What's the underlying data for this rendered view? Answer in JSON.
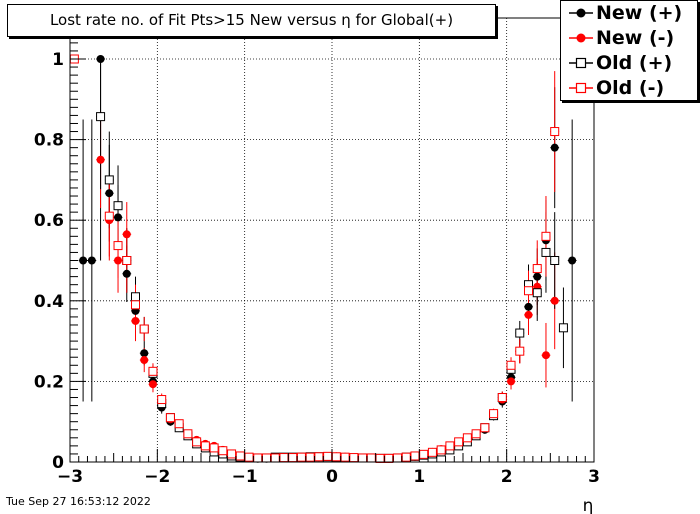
{
  "title": "Lost rate no. of Fit Pts>15 New versus η for Global(+)",
  "timestamp": "Tue Sep 27 16:53:12 2022",
  "chart_data": {
    "type": "scatter",
    "xlabel": "η",
    "ylabel": "",
    "xlim": [
      -3,
      3
    ],
    "ylim": [
      0,
      1.0
    ],
    "x_ticks": [
      "−3",
      "−2",
      "−1",
      "0",
      "1",
      "2",
      "3"
    ],
    "y_ticks": [
      "0",
      "0.2",
      "0.4",
      "0.6",
      "0.8",
      "1"
    ],
    "grid": true,
    "legend_position": "top-right",
    "series": [
      {
        "name": "New (+)",
        "color": "#000000",
        "marker": "filled-circle",
        "points": [
          [
            -2.85,
            0.5,
            0.35
          ],
          [
            -2.75,
            0.5,
            0.35
          ],
          [
            -2.65,
            1.0,
            0.5
          ],
          [
            -2.55,
            0.667,
            0.12
          ],
          [
            -2.45,
            0.607,
            0.08
          ],
          [
            -2.35,
            0.467,
            0.07
          ],
          [
            -2.25,
            0.375,
            0.05
          ],
          [
            -2.15,
            0.27,
            0.03
          ],
          [
            -2.05,
            0.2,
            0.02
          ],
          [
            -1.95,
            0.135,
            0.015
          ],
          [
            -1.85,
            0.1,
            0.01
          ],
          [
            -1.75,
            0.085,
            0.01
          ],
          [
            -1.65,
            0.065,
            0.008
          ],
          [
            -1.55,
            0.05,
            0.007
          ],
          [
            -1.45,
            0.037,
            0.005
          ],
          [
            -1.35,
            0.03,
            0.005
          ],
          [
            -1.25,
            0.022,
            0.004
          ],
          [
            -1.15,
            0.015,
            0.004
          ],
          [
            -1.05,
            0.012,
            0.003
          ],
          [
            -0.95,
            0.01,
            0.003
          ],
          [
            -0.85,
            0.008,
            0.003
          ],
          [
            -0.75,
            0.008,
            0.003
          ],
          [
            -0.65,
            0.01,
            0.003
          ],
          [
            -0.55,
            0.01,
            0.003
          ],
          [
            -0.45,
            0.01,
            0.003
          ],
          [
            -0.35,
            0.01,
            0.003
          ],
          [
            -0.25,
            0.012,
            0.003
          ],
          [
            -0.15,
            0.012,
            0.003
          ],
          [
            -0.05,
            0.014,
            0.003
          ],
          [
            0.05,
            0.014,
            0.003
          ],
          [
            0.15,
            0.012,
            0.003
          ],
          [
            0.25,
            0.01,
            0.003
          ],
          [
            0.35,
            0.01,
            0.003
          ],
          [
            0.45,
            0.009,
            0.003
          ],
          [
            0.55,
            0.008,
            0.003
          ],
          [
            0.65,
            0.008,
            0.003
          ],
          [
            0.75,
            0.009,
            0.003
          ],
          [
            0.85,
            0.01,
            0.003
          ],
          [
            0.95,
            0.013,
            0.003
          ],
          [
            1.05,
            0.016,
            0.004
          ],
          [
            1.15,
            0.022,
            0.004
          ],
          [
            1.25,
            0.028,
            0.005
          ],
          [
            1.35,
            0.035,
            0.005
          ],
          [
            1.45,
            0.045,
            0.006
          ],
          [
            1.55,
            0.055,
            0.007
          ],
          [
            1.65,
            0.065,
            0.008
          ],
          [
            1.75,
            0.08,
            0.01
          ],
          [
            1.85,
            0.115,
            0.012
          ],
          [
            1.95,
            0.15,
            0.015
          ],
          [
            2.05,
            0.21,
            0.02
          ],
          [
            2.15,
            0.275,
            0.03
          ],
          [
            2.25,
            0.385,
            0.05
          ],
          [
            2.35,
            0.46,
            0.07
          ],
          [
            2.45,
            0.55,
            0.1
          ],
          [
            2.55,
            0.78,
            0.15
          ],
          [
            2.75,
            0.5,
            0.35
          ]
        ]
      },
      {
        "name": "New (-)",
        "color": "#ff0000",
        "marker": "filled-circle",
        "points": [
          [
            -2.65,
            0.75,
            0.12
          ],
          [
            -2.55,
            0.6,
            0.1
          ],
          [
            -2.45,
            0.5,
            0.08
          ],
          [
            -2.35,
            0.565,
            0.08
          ],
          [
            -2.25,
            0.35,
            0.05
          ],
          [
            -2.15,
            0.253,
            0.03
          ],
          [
            -2.05,
            0.193,
            0.02
          ],
          [
            -1.95,
            0.148,
            0.015
          ],
          [
            -1.85,
            0.106,
            0.01
          ],
          [
            -1.75,
            0.09,
            0.01
          ],
          [
            -1.65,
            0.07,
            0.008
          ],
          [
            -1.55,
            0.055,
            0.007
          ],
          [
            -1.45,
            0.045,
            0.005
          ],
          [
            -1.35,
            0.04,
            0.005
          ],
          [
            -1.25,
            0.03,
            0.004
          ],
          [
            -1.15,
            0.02,
            0.004
          ],
          [
            -1.05,
            0.014,
            0.003
          ],
          [
            -0.95,
            0.012,
            0.003
          ],
          [
            -0.85,
            0.01,
            0.003
          ],
          [
            -0.75,
            0.009,
            0.003
          ],
          [
            -0.65,
            0.009,
            0.003
          ],
          [
            -0.55,
            0.01,
            0.003
          ],
          [
            -0.45,
            0.01,
            0.003
          ],
          [
            -0.35,
            0.01,
            0.003
          ],
          [
            -0.25,
            0.011,
            0.003
          ],
          [
            -0.15,
            0.012,
            0.003
          ],
          [
            -0.05,
            0.015,
            0.003
          ],
          [
            0.05,
            0.014,
            0.003
          ],
          [
            0.15,
            0.013,
            0.003
          ],
          [
            0.25,
            0.011,
            0.003
          ],
          [
            0.35,
            0.01,
            0.003
          ],
          [
            0.45,
            0.009,
            0.003
          ],
          [
            0.55,
            0.009,
            0.003
          ],
          [
            0.65,
            0.009,
            0.003
          ],
          [
            0.75,
            0.01,
            0.003
          ],
          [
            0.85,
            0.012,
            0.003
          ],
          [
            0.95,
            0.015,
            0.003
          ],
          [
            1.05,
            0.02,
            0.004
          ],
          [
            1.15,
            0.025,
            0.004
          ],
          [
            1.25,
            0.032,
            0.005
          ],
          [
            1.35,
            0.04,
            0.005
          ],
          [
            1.45,
            0.048,
            0.006
          ],
          [
            1.55,
            0.058,
            0.007
          ],
          [
            1.65,
            0.07,
            0.008
          ],
          [
            1.75,
            0.085,
            0.01
          ],
          [
            1.85,
            0.12,
            0.012
          ],
          [
            1.95,
            0.155,
            0.015
          ],
          [
            2.05,
            0.2,
            0.02
          ],
          [
            2.15,
            0.275,
            0.03
          ],
          [
            2.25,
            0.365,
            0.05
          ],
          [
            2.35,
            0.435,
            0.07
          ],
          [
            2.45,
            0.265,
            0.08
          ],
          [
            2.55,
            0.4,
            0.12
          ]
        ]
      },
      {
        "name": "Old (+)",
        "color": "#000000",
        "marker": "open-square",
        "points": [
          [
            -2.65,
            0.857,
            0.18
          ],
          [
            -2.55,
            0.7,
            0.12
          ],
          [
            -2.45,
            0.636,
            0.1
          ],
          [
            -2.35,
            0.5,
            0.08
          ],
          [
            -2.25,
            0.41,
            0.05
          ],
          [
            -2.15,
            0.33,
            0.03
          ],
          [
            -2.05,
            0.22,
            0.02
          ],
          [
            -1.95,
            0.145,
            0.015
          ],
          [
            -1.85,
            0.11,
            0.01
          ],
          [
            -1.75,
            0.085,
            0.01
          ],
          [
            -1.65,
            0.065,
            0.008
          ],
          [
            -1.55,
            0.045,
            0.007
          ],
          [
            -1.45,
            0.035,
            0.005
          ],
          [
            -1.35,
            0.025,
            0.005
          ],
          [
            -1.25,
            0.02,
            0.004
          ],
          [
            -1.15,
            0.015,
            0.004
          ],
          [
            -1.05,
            0.012,
            0.003
          ],
          [
            -0.95,
            0.01,
            0.003
          ],
          [
            -0.85,
            0.01,
            0.003
          ],
          [
            -0.75,
            0.01,
            0.003
          ],
          [
            -0.65,
            0.012,
            0.003
          ],
          [
            -0.55,
            0.012,
            0.003
          ],
          [
            -0.45,
            0.012,
            0.003
          ],
          [
            -0.35,
            0.012,
            0.003
          ],
          [
            -0.25,
            0.013,
            0.003
          ],
          [
            -0.15,
            0.013,
            0.003
          ],
          [
            -0.05,
            0.013,
            0.003
          ],
          [
            0.05,
            0.012,
            0.003
          ],
          [
            0.15,
            0.011,
            0.003
          ],
          [
            0.25,
            0.01,
            0.003
          ],
          [
            0.35,
            0.01,
            0.003
          ],
          [
            0.45,
            0.01,
            0.003
          ],
          [
            0.55,
            0.009,
            0.003
          ],
          [
            0.65,
            0.009,
            0.003
          ],
          [
            0.75,
            0.01,
            0.003
          ],
          [
            0.85,
            0.012,
            0.003
          ],
          [
            0.95,
            0.014,
            0.003
          ],
          [
            1.05,
            0.017,
            0.004
          ],
          [
            1.15,
            0.02,
            0.004
          ],
          [
            1.25,
            0.025,
            0.005
          ],
          [
            1.35,
            0.03,
            0.005
          ],
          [
            1.45,
            0.04,
            0.006
          ],
          [
            1.55,
            0.05,
            0.007
          ],
          [
            1.65,
            0.065,
            0.008
          ],
          [
            1.75,
            0.085,
            0.01
          ],
          [
            1.85,
            0.115,
            0.012
          ],
          [
            1.95,
            0.16,
            0.015
          ],
          [
            2.05,
            0.23,
            0.02
          ],
          [
            2.15,
            0.32,
            0.03
          ],
          [
            2.25,
            0.44,
            0.05
          ],
          [
            2.35,
            0.42,
            0.07
          ],
          [
            2.45,
            0.52,
            0.1
          ],
          [
            2.55,
            0.5,
            0.12
          ],
          [
            2.65,
            0.333,
            0.1
          ]
        ]
      },
      {
        "name": "Old (-)",
        "color": "#ff0000",
        "marker": "open-square",
        "points": [
          [
            -2.95,
            1.0,
            0.0
          ],
          [
            -2.55,
            0.61,
            0.1
          ],
          [
            -2.45,
            0.537,
            0.08
          ],
          [
            -2.35,
            0.5,
            0.08
          ],
          [
            -2.25,
            0.39,
            0.05
          ],
          [
            -2.15,
            0.33,
            0.03
          ],
          [
            -2.05,
            0.225,
            0.02
          ],
          [
            -1.95,
            0.155,
            0.015
          ],
          [
            -1.85,
            0.11,
            0.01
          ],
          [
            -1.75,
            0.095,
            0.01
          ],
          [
            -1.65,
            0.07,
            0.008
          ],
          [
            -1.55,
            0.05,
            0.007
          ],
          [
            -1.45,
            0.04,
            0.005
          ],
          [
            -1.35,
            0.035,
            0.005
          ],
          [
            -1.25,
            0.028,
            0.004
          ],
          [
            -1.15,
            0.02,
            0.004
          ],
          [
            -1.05,
            0.015,
            0.003
          ],
          [
            -0.95,
            0.012,
            0.003
          ],
          [
            -0.85,
            0.01,
            0.003
          ],
          [
            -0.75,
            0.01,
            0.003
          ],
          [
            -0.65,
            0.01,
            0.003
          ],
          [
            -0.55,
            0.011,
            0.003
          ],
          [
            -0.45,
            0.011,
            0.003
          ],
          [
            -0.35,
            0.012,
            0.003
          ],
          [
            -0.25,
            0.012,
            0.003
          ],
          [
            -0.15,
            0.013,
            0.003
          ],
          [
            -0.05,
            0.014,
            0.003
          ],
          [
            0.05,
            0.013,
            0.003
          ],
          [
            0.15,
            0.012,
            0.003
          ],
          [
            0.25,
            0.011,
            0.003
          ],
          [
            0.35,
            0.01,
            0.003
          ],
          [
            0.45,
            0.01,
            0.003
          ],
          [
            0.55,
            0.009,
            0.003
          ],
          [
            0.65,
            0.009,
            0.003
          ],
          [
            0.75,
            0.01,
            0.003
          ],
          [
            0.85,
            0.012,
            0.003
          ],
          [
            0.95,
            0.015,
            0.003
          ],
          [
            1.05,
            0.019,
            0.004
          ],
          [
            1.15,
            0.024,
            0.004
          ],
          [
            1.25,
            0.03,
            0.005
          ],
          [
            1.35,
            0.04,
            0.005
          ],
          [
            1.45,
            0.05,
            0.006
          ],
          [
            1.55,
            0.06,
            0.007
          ],
          [
            1.65,
            0.07,
            0.008
          ],
          [
            1.75,
            0.085,
            0.01
          ],
          [
            1.85,
            0.12,
            0.012
          ],
          [
            1.95,
            0.16,
            0.015
          ],
          [
            2.05,
            0.24,
            0.02
          ],
          [
            2.15,
            0.275,
            0.03
          ],
          [
            2.25,
            0.425,
            0.05
          ],
          [
            2.35,
            0.48,
            0.07
          ],
          [
            2.45,
            0.56,
            0.1
          ],
          [
            2.55,
            0.82,
            0.15
          ]
        ]
      }
    ]
  }
}
